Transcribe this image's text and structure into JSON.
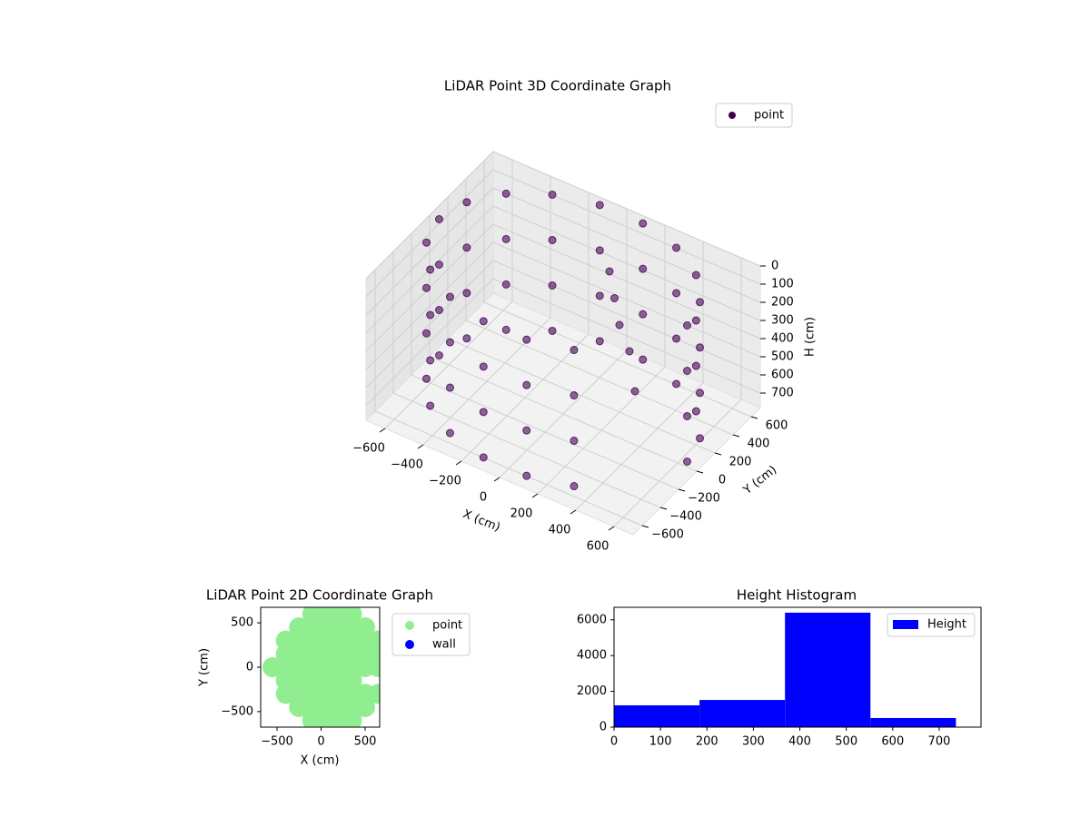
{
  "chart_data": [
    {
      "type": "scatter3d",
      "title": "LiDAR Point 3D Coordinate Graph",
      "xlabel": "X (cm)",
      "ylabel": "Y (cm)",
      "zlabel": "H (cm)",
      "xlim": [
        -700,
        700
      ],
      "ylim": [
        -700,
        700
      ],
      "zlim": [
        0,
        780
      ],
      "zinverted": true,
      "xticks": [
        {
          "value": -600,
          "label": "−600"
        },
        {
          "value": -400,
          "label": "−400"
        },
        {
          "value": -200,
          "label": "−200"
        },
        0,
        200,
        400,
        600
      ],
      "yticks": [
        {
          "value": -600,
          "label": "−600"
        },
        {
          "value": -400,
          "label": "−400"
        },
        {
          "value": -200,
          "label": "−200"
        },
        0,
        200,
        400,
        600
      ],
      "zticks": [
        0,
        100,
        200,
        300,
        400,
        500,
        600,
        700
      ],
      "legend": "upper right",
      "series": [
        {
          "name": "point",
          "color": "#440154",
          "x": [
            650,
            611,
            498,
            325,
            113,
            -113,
            -325,
            -498,
            -611,
            -650,
            -611,
            -498,
            -325,
            -113,
            113,
            325,
            650,
            611,
            498,
            325,
            113,
            -113,
            -325,
            -498,
            -611,
            -650,
            -611,
            -498,
            -325,
            -113,
            113,
            325,
            650,
            611,
            498,
            325,
            113,
            -113,
            -325,
            -498,
            -611,
            -650,
            -611,
            -498,
            -325,
            -113,
            113,
            325,
            650,
            611,
            498,
            325,
            113,
            -113,
            -325,
            -498,
            -611,
            -650,
            -611,
            -498,
            -325,
            -113,
            113,
            325,
            100,
            150,
            200,
            300,
            400
          ],
          "y": [
            0,
            222,
            418,
            563,
            640,
            640,
            563,
            418,
            222,
            0,
            -222,
            -418,
            -563,
            -640,
            -640,
            -563,
            0,
            222,
            418,
            563,
            640,
            640,
            563,
            418,
            222,
            0,
            -222,
            -418,
            -563,
            -640,
            -640,
            -563,
            0,
            222,
            418,
            563,
            640,
            640,
            563,
            418,
            222,
            0,
            -222,
            -418,
            -563,
            -640,
            -640,
            -563,
            0,
            222,
            418,
            563,
            640,
            640,
            563,
            418,
            222,
            0,
            -222,
            -418,
            -563,
            -640,
            -640,
            -563,
            300,
            250,
            200,
            100,
            -50
          ],
          "z": [
            0,
            0,
            0,
            0,
            0,
            0,
            0,
            0,
            0,
            0,
            0,
            0,
            0,
            0,
            0,
            0,
            250,
            250,
            250,
            250,
            250,
            250,
            250,
            250,
            250,
            250,
            250,
            250,
            250,
            250,
            250,
            250,
            500,
            500,
            500,
            500,
            500,
            500,
            500,
            500,
            500,
            500,
            500,
            500,
            500,
            500,
            500,
            500,
            750,
            750,
            750,
            750,
            750,
            750,
            750,
            750,
            750,
            750,
            750,
            750,
            750,
            750,
            750,
            750,
            100,
            200,
            300,
            350,
            450
          ]
        }
      ]
    },
    {
      "type": "scatter",
      "title": "LiDAR Point 2D Coordinate Graph",
      "xlabel": "X (cm)",
      "ylabel": "Y (cm)",
      "xlim": [
        -685,
        665
      ],
      "ylim": [
        -675,
        675
      ],
      "xticks": [
        {
          "value": -500,
          "label": "−500"
        },
        0,
        500
      ],
      "yticks": [
        {
          "value": -500,
          "label": "−500"
        },
        0,
        500
      ],
      "legend": "outside right",
      "series": [
        {
          "name": "point",
          "color": "#90ee90",
          "x": [
            -550,
            -400,
            -400,
            -400,
            -400,
            -400,
            -250,
            -250,
            -250,
            -250,
            -250,
            -250,
            -250,
            -100,
            -100,
            -100,
            -100,
            -100,
            -100,
            -100,
            -100,
            -100,
            50,
            50,
            50,
            50,
            50,
            50,
            50,
            50,
            50,
            200,
            200,
            200,
            200,
            200,
            200,
            200,
            200,
            200,
            350,
            350,
            350,
            350,
            350,
            350,
            350,
            350,
            350,
            500,
            500,
            500,
            500,
            500,
            500,
            650,
            650,
            650,
            650
          ],
          "y": [
            0,
            -300,
            -150,
            0,
            150,
            300,
            -450,
            -300,
            -150,
            0,
            150,
            300,
            450,
            -600,
            -450,
            -300,
            -150,
            0,
            150,
            300,
            450,
            600,
            -600,
            -450,
            -300,
            -150,
            0,
            150,
            300,
            450,
            600,
            -600,
            -450,
            -300,
            -150,
            0,
            150,
            300,
            450,
            600,
            -600,
            -450,
            -300,
            -150,
            0,
            150,
            300,
            450,
            600,
            -450,
            -300,
            0,
            150,
            300,
            450,
            -300,
            0,
            150,
            300
          ]
        },
        {
          "name": "wall",
          "color": "#0000ff",
          "x": [],
          "y": []
        }
      ]
    },
    {
      "type": "histogram",
      "title": "Height Histogram",
      "bins": [
        0,
        184,
        368,
        552,
        736
      ],
      "xlim": [
        0,
        790
      ],
      "ylim": [
        0,
        6700
      ],
      "xticks": [
        0,
        100,
        200,
        300,
        400,
        500,
        600,
        700
      ],
      "yticks": [
        0,
        2000,
        4000,
        6000
      ],
      "legend": "upper right",
      "series": [
        {
          "name": "Height",
          "color": "#0000ff",
          "values": [
            1220,
            1520,
            6400,
            510
          ]
        }
      ]
    }
  ]
}
